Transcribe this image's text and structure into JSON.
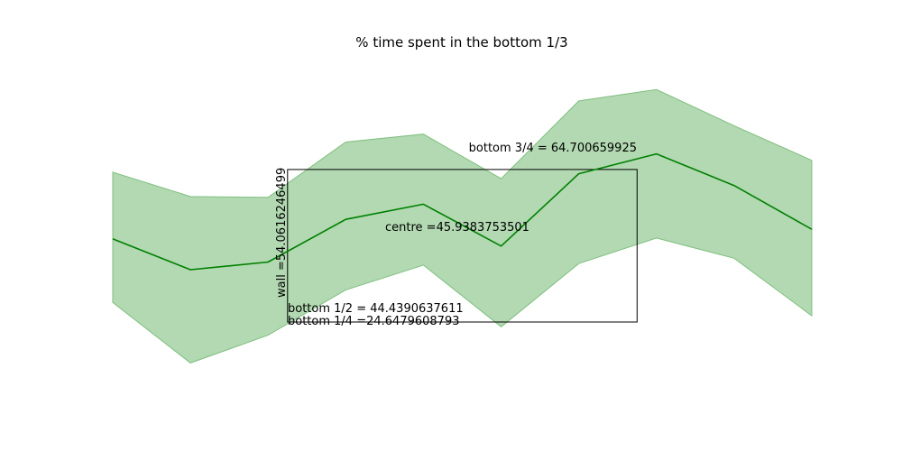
{
  "chart_data": {
    "type": "line",
    "title": "% time spent in the bottom 1/3",
    "xlabel": "",
    "ylabel": "",
    "axes_visible": false,
    "grid": false,
    "x": [
      0,
      1,
      2,
      3,
      4,
      5,
      6,
      7,
      8,
      9
    ],
    "series": [
      {
        "values": [
          46.5,
          38.4,
          40.4,
          51.6,
          55.6,
          44.6,
          63.6,
          68.8,
          60.5,
          49.0
        ],
        "band_upper": [
          64.0,
          57.6,
          57.4,
          71.9,
          74.0,
          62.3,
          82.7,
          85.7,
          76.2,
          67.1
        ],
        "band_lower": [
          29.8,
          13.9,
          21.2,
          33.1,
          39.6,
          23.4,
          40.0,
          46.7,
          41.4,
          26.3
        ],
        "color": "#008000",
        "band_color": "#b2d9b2",
        "band_edge_color": "#7fbf7f"
      }
    ],
    "reference_box": {
      "x_range": [
        2.25,
        6.75
      ],
      "y_range": [
        24.6479608793,
        64.700659925
      ],
      "color": "#000000"
    },
    "annotations": {
      "bottom_3_4": "bottom 3/4 = 64.700659925",
      "centre": "centre =45.9383753501",
      "bottom_1_2": "bottom 1/2 = 44.4390637611",
      "bottom_1_4": "bottom 1/4 =24.6479608793",
      "wall": "wall =54.0616246499"
    },
    "xlim": [
      0,
      9
    ],
    "ylim": [
      5,
      95
    ]
  }
}
